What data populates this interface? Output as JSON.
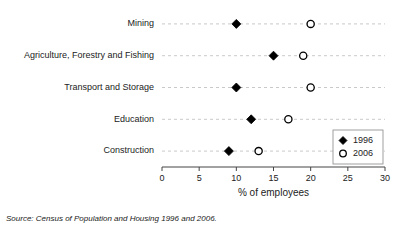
{
  "chart_data": {
    "type": "dot",
    "orientation": "horizontal",
    "categories": [
      "Mining",
      "Agriculture, Forestry and Fishing",
      "Transport and Storage",
      "Education",
      "Construction"
    ],
    "series": [
      {
        "name": "1996",
        "color": "#000000",
        "marker": "diamond",
        "values": [
          10,
          15,
          10,
          12,
          9
        ]
      },
      {
        "name": "2006",
        "color": "#000000",
        "marker": "circle",
        "values": [
          20,
          19,
          20,
          17,
          13
        ]
      }
    ],
    "xlabel": "% of employees",
    "xlim": [
      0,
      30
    ],
    "xticks": [
      0,
      5,
      10,
      15,
      20,
      25,
      30
    ],
    "grid": true,
    "legend": "lower-right",
    "source": "Source: Census of Population and Housing 1996 and 2006."
  }
}
